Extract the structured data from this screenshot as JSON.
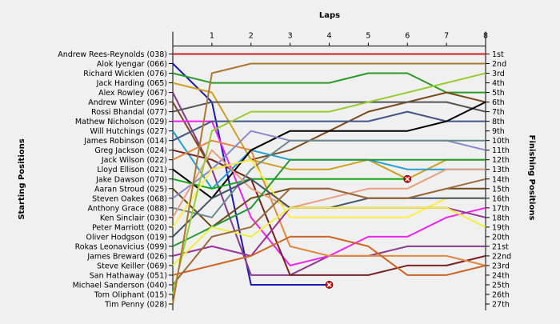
{
  "chart_data": {
    "type": "line",
    "title": "",
    "xlabel": "Laps",
    "ylabel_left": "Starting Positions",
    "ylabel_right": "Finishing Positions",
    "x": [
      0,
      1,
      2,
      3,
      4,
      5,
      6,
      7,
      8
    ],
    "xlim": [
      0,
      8
    ],
    "ylim": [
      1,
      27
    ],
    "y_inverted": true,
    "grid": false,
    "start_labels": [
      "Andrew Rees-Reynolds (038)",
      "Alok Iyengar (066)",
      "Richard Wicklen (076)",
      "Jack Harding (065)",
      "Alex Rowley (067)",
      "Andrew Winter (096)",
      "Rossi Bhandal (077)",
      "Mathew Nicholson (029)",
      "Will Hutchings (027)",
      "James Robinson (014)",
      "Greg Jackson (024)",
      "Jack Wilson (022)",
      "Lloyd Ellison (021)",
      "Jake Dawson (070)",
      "Aaran Stroud (025)",
      "Steven Oakes (068)",
      "Anthony Grace (088)",
      "Ken Sinclair (030)",
      "Peter Marriott (020)",
      "Oliver Hodgson (019)",
      "Rokas Leonavicius (099)",
      "James Breward (026)",
      "Steve Keiller (069)",
      "San Hathaway (051)",
      "Michael Sanderson (040)",
      "Tom Oliphant (015)",
      "Tim Penny (028)"
    ],
    "finish_labels": [
      "1st",
      "2nd",
      "3rd",
      "4th",
      "5th",
      "6th",
      "7th",
      "8th",
      "9th",
      "10th",
      "11th",
      "12th",
      "13th",
      "14th",
      "15th",
      "16th",
      "17th",
      "18th",
      "19th",
      "20th",
      "21st",
      "22nd",
      "23rd",
      "24th",
      "25th",
      "26th",
      "27th"
    ],
    "series": [
      {
        "name": "Andrew Rees-Reynolds (038)",
        "color": "#cc2222",
        "values": [
          1,
          1,
          1,
          1,
          1,
          1,
          1,
          1,
          1
        ]
      },
      {
        "name": "Alok Iyengar (066)",
        "color": "#1a1ab0",
        "values": [
          2,
          6,
          25,
          25,
          25,
          null,
          null,
          null,
          null
        ],
        "retired_at": 4
      },
      {
        "name": "Richard Wicklen (076)",
        "color": "#2a9a2a",
        "values": [
          3,
          4,
          4,
          4,
          4,
          3,
          3,
          5,
          5
        ]
      },
      {
        "name": "Jack Harding (065)",
        "color": "#d0a020",
        "values": [
          4,
          5,
          12,
          13,
          13,
          12,
          14,
          12,
          12
        ]
      },
      {
        "name": "Alex Rowley (067)",
        "color": "#8a3a8a",
        "values": [
          5,
          13,
          24,
          24,
          22,
          22,
          21,
          21,
          21
        ]
      },
      {
        "name": "Andrew Winter (096)",
        "color": "#7a4a1a",
        "values": [
          6,
          13,
          12,
          11,
          9,
          7,
          6,
          5,
          6
        ]
      },
      {
        "name": "Rossi Bhandal (077)",
        "color": "#555555",
        "values": [
          7,
          6,
          6,
          6,
          6,
          6,
          6,
          6,
          7
        ]
      },
      {
        "name": "Mathew Nicholson (029)",
        "color": "#ee22ee",
        "values": [
          8,
          8,
          18,
          23,
          22,
          20,
          20,
          18,
          17
        ]
      },
      {
        "name": "Will Hutchings (027)",
        "color": "#22a0d0",
        "values": [
          9,
          15,
          11,
          12,
          12,
          12,
          13,
          13,
          13
        ]
      },
      {
        "name": "James Robinson (014)",
        "color": "#445588",
        "values": [
          10,
          8,
          8,
          8,
          8,
          8,
          7,
          8,
          8
        ]
      },
      {
        "name": "Greg Jackson (024)",
        "color": "#772222",
        "values": [
          11,
          12,
          14,
          24,
          24,
          24,
          23,
          23,
          22
        ]
      },
      {
        "name": "Jack Wilson (022)",
        "color": "#e08840",
        "values": [
          12,
          10,
          11,
          21,
          22,
          22,
          22,
          22,
          23
        ]
      },
      {
        "name": "Lloyd Ellison (021)",
        "color": "#000000",
        "values": [
          13,
          16,
          11,
          9,
          9,
          9,
          9,
          8,
          6
        ]
      },
      {
        "name": "Jake Dawson (070)",
        "color": "#11aa11",
        "values": [
          14,
          15,
          14,
          14,
          14,
          14,
          14,
          null,
          null
        ],
        "retired_at": 6
      },
      {
        "name": "Aaran Stroud (025)",
        "color": "#6b4a1a",
        "values": [
          15,
          19,
          16,
          15,
          15,
          16,
          16,
          15,
          15
        ]
      },
      {
        "name": "Steven Oakes (068)",
        "color": "#8888cc",
        "values": [
          16,
          13,
          9,
          10,
          10,
          10,
          10,
          10,
          11
        ]
      },
      {
        "name": "Anthony Grace (088)",
        "color": "#6a8a8a",
        "values": [
          17,
          18,
          13,
          10,
          10,
          10,
          10,
          10,
          10
        ]
      },
      {
        "name": "Ken Sinclair (030)",
        "color": "#e8a080",
        "values": [
          18,
          11,
          15,
          17,
          16,
          15,
          15,
          13,
          13
        ]
      },
      {
        "name": "Peter Marriott (020)",
        "color": "#ffee44",
        "values": [
          19,
          13,
          12,
          18,
          18,
          18,
          18,
          16,
          16
        ]
      },
      {
        "name": "Oliver Hodgson (019)",
        "color": "#445566",
        "values": [
          20,
          16,
          14,
          17,
          17,
          16,
          16,
          16,
          16
        ]
      },
      {
        "name": "Rokas Leonavicius (099)",
        "color": "#229933",
        "values": [
          21,
          19,
          17,
          12,
          12,
          12,
          12,
          12,
          12
        ]
      },
      {
        "name": "James Breward (026)",
        "color": "#993399",
        "values": [
          22,
          21,
          22,
          17,
          17,
          17,
          17,
          17,
          18
        ]
      },
      {
        "name": "Steve Keiller (069)",
        "color": "#f0f040",
        "values": [
          23,
          19,
          20,
          17,
          17,
          17,
          17,
          17,
          19
        ]
      },
      {
        "name": "San Hathaway (051)",
        "color": "#cc6622",
        "values": [
          24,
          23,
          22,
          20,
          20,
          21,
          24,
          24,
          23
        ]
      },
      {
        "name": "Michael Sanderson (040)",
        "color": "#9a6a3a",
        "values": [
          25,
          20,
          19,
          15,
          15,
          16,
          16,
          15,
          14
        ]
      },
      {
        "name": "Tom Oliphant (015)",
        "color": "#99cc33",
        "values": [
          26,
          9,
          7,
          7,
          7,
          6,
          5,
          4,
          3
        ]
      },
      {
        "name": "Tim Penny (028)",
        "color": "#aa7733",
        "values": [
          27,
          3,
          2,
          2,
          2,
          2,
          2,
          2,
          2
        ]
      }
    ],
    "legend": "none"
  }
}
